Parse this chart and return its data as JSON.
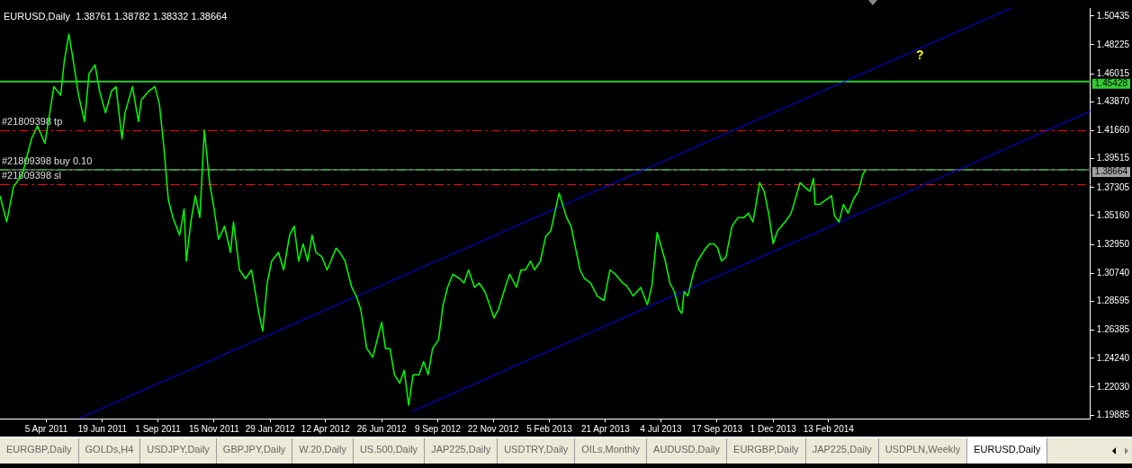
{
  "chart_data": {
    "type": "line",
    "title": "EURUSD,Daily  1.38761 1.38782 1.38332 1.38664",
    "marker": "none",
    "grid": false,
    "legend": false,
    "xlim": [
      "2011-02-02",
      "2015-01-29"
    ],
    "xticks": [
      {
        "value": "2011-04-05",
        "label": "5 Apr 2011"
      },
      {
        "value": "2011-06-19",
        "label": "19 Jun 2011"
      },
      {
        "value": "2011-09-01",
        "label": "1 Sep 2011"
      },
      {
        "value": "2011-11-15",
        "label": "15 Nov 2011"
      },
      {
        "value": "2012-01-29",
        "label": "29 Jan 2012"
      },
      {
        "value": "2012-04-12",
        "label": "12 Apr 2012"
      },
      {
        "value": "2012-06-26",
        "label": "26 Jun 2012"
      },
      {
        "value": "2012-09-09",
        "label": "9 Sep 2012"
      },
      {
        "value": "2012-11-22",
        "label": "22 Nov 2012"
      },
      {
        "value": "2013-02-05",
        "label": "5 Feb 2013"
      },
      {
        "value": "2013-04-21",
        "label": "21 Apr 2013"
      },
      {
        "value": "2013-07-04",
        "label": "4 Jul 2013"
      },
      {
        "value": "2013-09-17",
        "label": "17 Sep 2013"
      },
      {
        "value": "2013-12-01",
        "label": "1 Dec 2013"
      },
      {
        "value": "2014-02-13",
        "label": "13 Feb 2014"
      }
    ],
    "ylim": [
      1.1962,
      1.5104
    ],
    "yticks": [
      {
        "value": 1.50435,
        "label": "1.50435"
      },
      {
        "value": 1.48225,
        "label": "1.48225"
      },
      {
        "value": 1.46015,
        "label": "1.46015"
      },
      {
        "value": 1.4387,
        "label": "1.43870"
      },
      {
        "value": 1.4166,
        "label": "1.41660"
      },
      {
        "value": 1.39515,
        "label": "1.39515"
      },
      {
        "value": 1.37305,
        "label": "1.37305"
      },
      {
        "value": 1.3516,
        "label": "1.35160"
      },
      {
        "value": 1.3295,
        "label": "1.32950"
      },
      {
        "value": 1.3074,
        "label": "1.30740"
      },
      {
        "value": 1.28595,
        "label": "1.28595"
      },
      {
        "value": 1.26385,
        "label": "1.26385"
      },
      {
        "value": 1.2424,
        "label": "1.24240"
      },
      {
        "value": 1.2203,
        "label": "1.22030"
      },
      {
        "value": 1.19885,
        "label": "1.19885"
      }
    ],
    "series": [
      {
        "type": "line",
        "color": "#00ff00",
        "x": [
          "2011-02-02",
          "2011-02-11",
          "2011-02-20",
          "2011-03-04",
          "2011-03-16",
          "2011-03-24",
          "2011-04-03",
          "2011-04-15",
          "2011-04-24",
          "2011-04-29",
          "2011-05-05",
          "2011-05-09",
          "2011-05-18",
          "2011-05-26",
          "2011-06-01",
          "2011-06-09",
          "2011-06-15",
          "2011-06-23",
          "2011-07-01",
          "2011-07-07",
          "2011-07-15",
          "2011-07-19",
          "2011-07-29",
          "2011-08-06",
          "2011-08-10",
          "2011-08-20",
          "2011-08-28",
          "2011-09-03",
          "2011-09-09",
          "2011-09-15",
          "2011-09-21",
          "2011-09-30",
          "2011-10-06",
          "2011-10-09",
          "2011-10-15",
          "2011-10-21",
          "2011-10-27",
          "2011-11-02",
          "2011-11-09",
          "2011-11-15",
          "2011-11-21",
          "2011-11-29",
          "2011-12-07",
          "2011-12-11",
          "2011-12-19",
          "2011-12-27",
          "2012-01-04",
          "2012-01-14",
          "2012-01-19",
          "2012-01-25",
          "2012-01-31",
          "2012-02-09",
          "2012-02-16",
          "2012-02-24",
          "2012-03-01",
          "2012-03-07",
          "2012-03-13",
          "2012-03-19",
          "2012-03-25",
          "2012-03-30",
          "2012-04-07",
          "2012-04-14",
          "2012-04-19",
          "2012-04-26",
          "2012-05-01",
          "2012-05-08",
          "2012-05-17",
          "2012-05-23",
          "2012-05-29",
          "2012-06-06",
          "2012-06-14",
          "2012-06-20",
          "2012-06-26",
          "2012-07-01",
          "2012-07-07",
          "2012-07-13",
          "2012-07-20",
          "2012-07-26",
          "2012-08-01",
          "2012-08-07",
          "2012-08-15",
          "2012-08-21",
          "2012-08-27",
          "2012-09-02",
          "2012-09-10",
          "2012-09-16",
          "2012-09-22",
          "2012-09-29",
          "2012-10-08",
          "2012-10-14",
          "2012-10-20",
          "2012-10-28",
          "2012-11-03",
          "2012-11-11",
          "2012-11-17",
          "2012-11-23",
          "2012-11-29",
          "2012-12-08",
          "2012-12-14",
          "2012-12-23",
          "2012-12-29",
          "2013-01-04",
          "2013-01-11",
          "2013-01-16",
          "2013-01-24",
          "2013-01-31",
          "2013-02-07",
          "2013-02-18",
          "2013-02-28",
          "2013-03-06",
          "2013-03-12",
          "2013-03-18",
          "2013-03-24",
          "2013-04-01",
          "2013-04-10",
          "2013-04-19",
          "2013-04-27",
          "2013-05-04",
          "2013-05-14",
          "2013-05-19",
          "2013-05-28",
          "2013-06-07",
          "2013-06-16",
          "2013-06-22",
          "2013-06-29",
          "2013-07-10",
          "2013-07-16",
          "2013-07-22",
          "2013-07-28",
          "2013-08-01",
          "2013-08-04",
          "2013-08-09",
          "2013-08-16",
          "2013-08-22",
          "2013-09-02",
          "2013-09-07",
          "2013-09-13",
          "2013-09-18",
          "2013-09-23",
          "2013-09-29",
          "2013-10-07",
          "2013-10-15",
          "2013-10-23",
          "2013-10-29",
          "2013-11-04",
          "2013-11-13",
          "2013-11-19",
          "2013-11-25",
          "2013-12-01",
          "2013-12-07",
          "2013-12-17",
          "2013-12-25",
          "2014-01-01",
          "2014-01-06",
          "2014-01-12",
          "2014-01-19",
          "2014-01-24",
          "2014-01-26",
          "2014-02-01",
          "2014-02-09",
          "2014-02-17",
          "2014-02-21",
          "2014-02-27",
          "2014-03-05",
          "2014-03-11",
          "2014-03-19",
          "2014-03-25",
          "2014-03-31",
          "2014-04-04"
        ],
        "values": [
          1.3668,
          1.3467,
          1.3735,
          1.3835,
          1.4102,
          1.4202,
          1.4069,
          1.4503,
          1.4436,
          1.4703,
          1.4904,
          1.477,
          1.4436,
          1.4236,
          1.4603,
          1.467,
          1.4469,
          1.4302,
          1.4469,
          1.4503,
          1.4102,
          1.4302,
          1.4503,
          1.4236,
          1.4403,
          1.4469,
          1.4503,
          1.4369,
          1.4035,
          1.3634,
          1.3501,
          1.3367,
          1.3568,
          1.3167,
          1.3467,
          1.3668,
          1.3501,
          1.4169,
          1.3768,
          1.3568,
          1.3334,
          1.3434,
          1.3234,
          1.3467,
          1.31,
          1.3033,
          1.31,
          1.2766,
          1.2632,
          1.3,
          1.3167,
          1.3234,
          1.31,
          1.3367,
          1.3434,
          1.3167,
          1.33,
          1.3167,
          1.3367,
          1.3234,
          1.32,
          1.31,
          1.3167,
          1.3267,
          1.3234,
          1.3167,
          1.2966,
          1.29,
          1.2799,
          1.2499,
          1.2432,
          1.2566,
          1.2699,
          1.2499,
          1.2499,
          1.2298,
          1.2232,
          1.2332,
          1.2065,
          1.2298,
          1.2298,
          1.2399,
          1.2298,
          1.2499,
          1.2566,
          1.2833,
          1.2966,
          1.3067,
          1.3033,
          1.3,
          1.31,
          1.2966,
          1.3,
          1.2933,
          1.2833,
          1.2733,
          1.2799,
          1.2966,
          1.3067,
          1.2966,
          1.31,
          1.31,
          1.3167,
          1.31,
          1.3167,
          1.3354,
          1.3401,
          1.3688,
          1.3501,
          1.3434,
          1.3267,
          1.31,
          1.3033,
          1.3,
          1.29,
          1.2866,
          1.31,
          1.3067,
          1.3,
          1.298,
          1.29,
          1.2966,
          1.2833,
          1.298,
          1.3387,
          1.3167,
          1.3,
          1.2933,
          1.2799,
          1.2766,
          1.2933,
          1.29,
          1.3067,
          1.3167,
          1.3267,
          1.33,
          1.33,
          1.3267,
          1.3167,
          1.32,
          1.3434,
          1.3501,
          1.3501,
          1.3534,
          1.3467,
          1.3768,
          1.3701,
          1.3534,
          1.33,
          1.3401,
          1.3467,
          1.3534,
          1.3668,
          1.3768,
          1.3735,
          1.3701,
          1.3801,
          1.3601,
          1.3601,
          1.3634,
          1.3668,
          1.3514,
          1.3467,
          1.3601,
          1.3534,
          1.3648,
          1.3701,
          1.3835,
          1.3866
        ]
      },
      {
        "type": "line",
        "color": "#0000ff",
        "x": [
          "2011-05-18",
          "2014-10-15"
        ],
        "values": [
          1.1962,
          1.5104
        ]
      },
      {
        "type": "line",
        "color": "#0000ff",
        "x": [
          "2012-08-05",
          "2015-01-29"
        ],
        "values": [
          1.2015,
          1.4315
        ]
      }
    ],
    "ref_lines": [
      {
        "axis": "y",
        "value": 1.45428,
        "label": "1.45428",
        "color": "#33cc33",
        "line_style": "solid"
      },
      {
        "axis": "y",
        "value": 1.4166,
        "label": "#21809398 tp",
        "color": "#ff0000",
        "line_style": "dashed"
      },
      {
        "axis": "y",
        "value": 1.38664,
        "label": "1.38664",
        "color": "#a0a0a0",
        "line_style": "solid"
      },
      {
        "axis": "y",
        "value": 1.3866,
        "label": "#21809398 buy 0.10",
        "color": "#33cc33",
        "line_style": "dashed"
      },
      {
        "axis": "y",
        "value": 1.3753,
        "label": "#21809398 sl",
        "color": "#ff0000",
        "line_style": "dashed"
      }
    ],
    "annotations": [
      "?",
      "EURGBP,Daily",
      "GOLDs,H4",
      "USDJPY,Daily",
      "GBPJPY,Daily",
      "W.20,Daily",
      "US.500,Daily",
      "JAP225,Daily",
      "USDTRY,Daily",
      "OILs,Monthly",
      "AUDUSD,Daily",
      "EURGBP,Daily",
      "JAP225,Daily",
      "USDPLN,Weekly",
      "EURUSD,Daily"
    ]
  }
}
